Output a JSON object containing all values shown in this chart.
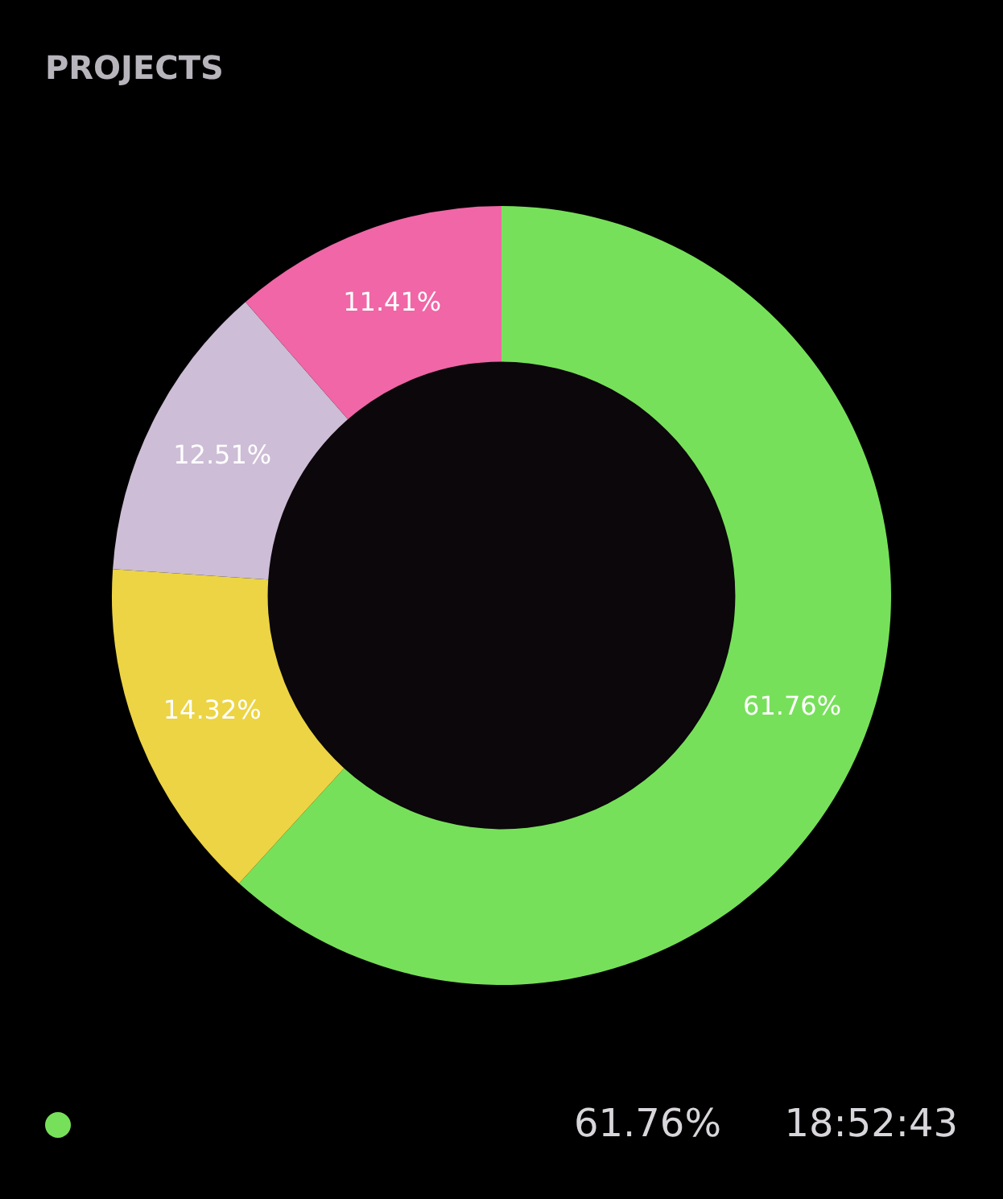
{
  "chart_data": {
    "type": "donut",
    "title": "PROJECTS",
    "categories": [
      null,
      null,
      null,
      null
    ],
    "values": [
      61.76,
      14.32,
      12.51,
      11.41
    ],
    "colors": [
      "#77e05a",
      "#ecd444",
      "#cdbdd6",
      "#f066a6"
    ],
    "value_labels": [
      "61.76%",
      "14.32%",
      "12.51%",
      "11.41%"
    ],
    "annotations": [
      "61.76%",
      "18:52:43"
    ]
  }
}
